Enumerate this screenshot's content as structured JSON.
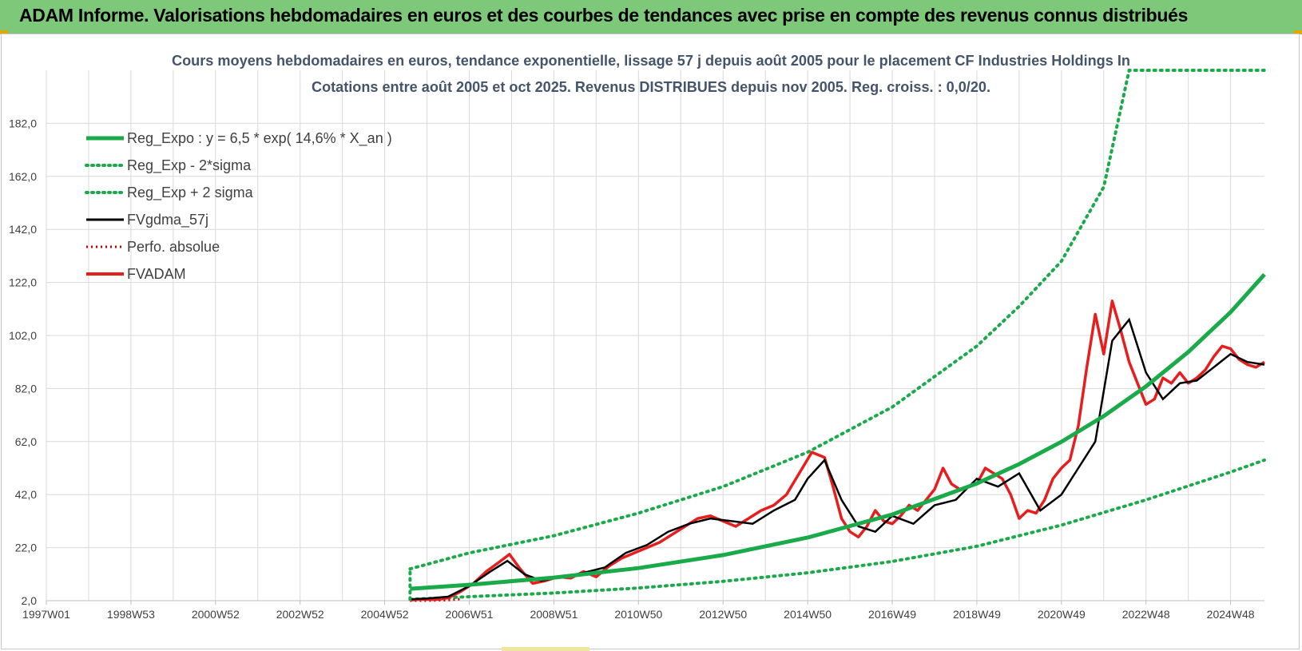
{
  "header": {
    "title": "ADAM Informe. Valorisations hebdomadaires en euros et des courbes de tendances avec prise en compte des revenus connus distribués"
  },
  "colors": {
    "header_bg": "#7ec87a",
    "reg_expo": "#1aaa4a",
    "fvgdma": "#000000",
    "fvadam": "#e61e1e",
    "grid": "#d9d9d9",
    "axis_text": "#404040",
    "title_text": "#44546a"
  },
  "chart_data": {
    "type": "line",
    "title_line1": "Cours moyens hebdomadaires en euros, tendance exponentielle, lissage 57 j depuis août 2005 pour le placement CF Industries Holdings In",
    "title_line2": "Cotations entre août 2005 et oct 2025. Revenus DISTRIBUES depuis nov 2005. Reg. croiss. : 0,0/20.",
    "xlabel": "",
    "ylabel": "",
    "xlim": [
      1997.0,
      2025.8
    ],
    "ylim": [
      2.0,
      202.0
    ],
    "y_ticks": [
      2.0,
      22.0,
      42.0,
      62.0,
      82.0,
      102.0,
      122.0,
      142.0,
      162.0,
      182.0
    ],
    "y_tick_labels": [
      "2,0",
      "22,0",
      "42,0",
      "62,0",
      "82,0",
      "102,0",
      "122,0",
      "142,0",
      "162,0",
      "182,0"
    ],
    "x_ticks": [
      1997.0,
      1999.0,
      2001.0,
      2003.0,
      2005.0,
      2007.0,
      2009.0,
      2011.0,
      2013.0,
      2015.0,
      2017.0,
      2019.0,
      2021.0,
      2023.0,
      2025.0
    ],
    "x_tick_labels": [
      "1997W01",
      "1998W53",
      "2000W52",
      "2002W52",
      "2004W52",
      "2006W51",
      "2008W51",
      "2010W50",
      "2012W50",
      "2014W50",
      "2016W49",
      "2018W49",
      "2020W49",
      "2022W48",
      "2024W48"
    ],
    "grid": true,
    "legend_position": "top-left",
    "legend": [
      {
        "key": "reg_expo",
        "label": "Reg_Expo : y = 6,5 * exp( 14,6% *  X_an )"
      },
      {
        "key": "reg_minus",
        "label": "Reg_Exp - 2*sigma"
      },
      {
        "key": "reg_plus",
        "label": "Reg_Exp + 2 sigma"
      },
      {
        "key": "fvgdma",
        "label": "FVgdma_57j"
      },
      {
        "key": "perfo",
        "label": "Perfo. absolue"
      },
      {
        "key": "fvadam",
        "label": "FVADAM"
      }
    ],
    "series": [
      {
        "key": "reg_expo",
        "name": "Reg_Expo : y = 6,5 * exp( 14,6% *  X_an )",
        "style": "solid",
        "color": "#1aaa4a",
        "x": [
          2005.6,
          2007,
          2009,
          2011,
          2013,
          2015,
          2017,
          2019,
          2020,
          2021,
          2022,
          2023,
          2024,
          2025,
          2025.8
        ],
        "y": [
          6.5,
          8.0,
          10.7,
          14.3,
          19.2,
          25.8,
          34.5,
          46.2,
          53.5,
          61.9,
          71.6,
          82.8,
          95.8,
          110.8,
          125.0
        ]
      },
      {
        "key": "reg_minus",
        "name": "Reg_Exp - 2*sigma",
        "style": "dotted",
        "color": "#1aaa4a",
        "x": [
          2005.6,
          2007,
          2009,
          2011,
          2013,
          2015,
          2017,
          2019,
          2021,
          2023,
          2025,
          2025.8
        ],
        "y": [
          2.5,
          3.5,
          4.9,
          6.8,
          9.3,
          12.5,
          16.8,
          22.5,
          30.5,
          40.0,
          50.5,
          55.0
        ]
      },
      {
        "key": "reg_plus",
        "name": "Reg_Exp + 2 sigma",
        "style": "dotted",
        "color": "#1aaa4a",
        "x": [
          2005.6,
          2007,
          2009,
          2011,
          2013,
          2015,
          2017,
          2019,
          2020,
          2021,
          2022,
          2022.6,
          2023,
          2025.8
        ],
        "y": [
          14.0,
          20.0,
          26.5,
          35.0,
          45.0,
          58.0,
          75.0,
          98.0,
          113.0,
          130.0,
          158.0,
          202.0,
          202.0,
          202.0
        ]
      },
      {
        "key": "perfo",
        "name": "Perfo. absolue",
        "style": "dotted",
        "color": "#c00000",
        "x": [
          2005.6,
          2006,
          2006.5,
          2006.8
        ],
        "y": [
          2.0,
          2.0,
          2.2,
          2.6
        ]
      },
      {
        "key": "fvgdma",
        "name": "FVgdma_57j",
        "style": "solid",
        "color": "#000000",
        "x": [
          2005.6,
          2006.0,
          2006.5,
          2007.0,
          2007.5,
          2007.9,
          2008.3,
          2008.7,
          2009.2,
          2009.7,
          2010.2,
          2010.7,
          2011.2,
          2011.7,
          2012.2,
          2012.7,
          2013.2,
          2013.7,
          2014.2,
          2014.7,
          2015.0,
          2015.4,
          2015.8,
          2016.2,
          2016.6,
          2017.0,
          2017.5,
          2018.0,
          2018.5,
          2019.0,
          2019.5,
          2020.0,
          2020.5,
          2021.0,
          2021.4,
          2021.8,
          2022.2,
          2022.6,
          2023.0,
          2023.4,
          2023.8,
          2024.2,
          2024.6,
          2025.0,
          2025.4,
          2025.8
        ],
        "y": [
          2.5,
          2.8,
          3.5,
          7.5,
          13.0,
          17.0,
          12.0,
          9.5,
          11.0,
          12.5,
          14.5,
          20.0,
          23.0,
          28.0,
          31.0,
          33.0,
          32.0,
          31.0,
          36.0,
          40.0,
          48.0,
          55.0,
          40.0,
          30.0,
          28.0,
          34.0,
          31.0,
          38.0,
          40.0,
          48.0,
          45.0,
          50.0,
          36.0,
          42.0,
          52.0,
          62.0,
          100.0,
          108.0,
          88.0,
          78.0,
          84.0,
          85.0,
          90.0,
          95.0,
          92.0,
          91.0
        ]
      },
      {
        "key": "fvadam",
        "name": "FVADAM",
        "style": "solid",
        "color": "#e61e1e",
        "x": [
          2005.6,
          2005.9,
          2006.2,
          2006.5,
          2006.8,
          2007.1,
          2007.4,
          2007.7,
          2007.95,
          2008.2,
          2008.5,
          2008.8,
          2009.1,
          2009.4,
          2009.7,
          2010.0,
          2010.3,
          2010.6,
          2010.9,
          2011.2,
          2011.5,
          2011.8,
          2012.1,
          2012.4,
          2012.7,
          2013.0,
          2013.3,
          2013.6,
          2013.9,
          2014.2,
          2014.5,
          2014.8,
          2015.1,
          2015.4,
          2015.6,
          2015.8,
          2016.0,
          2016.2,
          2016.4,
          2016.6,
          2016.8,
          2017.0,
          2017.2,
          2017.4,
          2017.6,
          2017.8,
          2018.0,
          2018.2,
          2018.4,
          2018.6,
          2018.8,
          2019.0,
          2019.2,
          2019.4,
          2019.6,
          2019.8,
          2020.0,
          2020.2,
          2020.4,
          2020.6,
          2020.8,
          2021.0,
          2021.2,
          2021.4,
          2021.6,
          2021.8,
          2022.0,
          2022.2,
          2022.4,
          2022.6,
          2022.8,
          2023.0,
          2023.2,
          2023.4,
          2023.6,
          2023.8,
          2024.0,
          2024.2,
          2024.4,
          2024.6,
          2024.8,
          2025.0,
          2025.2,
          2025.4,
          2025.6,
          2025.8
        ],
        "y": [
          2.2,
          2.5,
          2.4,
          3.0,
          5.5,
          8.5,
          13.0,
          16.5,
          19.5,
          14.0,
          8.5,
          9.5,
          11.0,
          10.5,
          13.0,
          11.0,
          15.0,
          18.0,
          20.0,
          22.0,
          24.0,
          27.0,
          30.0,
          33.0,
          34.0,
          32.0,
          30.0,
          33.0,
          36.0,
          38.0,
          42.0,
          50.0,
          58.0,
          56.0,
          45.0,
          33.0,
          28.0,
          26.0,
          30.0,
          36.0,
          32.0,
          31.0,
          34.0,
          38.0,
          36.0,
          40.0,
          44.0,
          52.0,
          46.0,
          44.0,
          45.0,
          46.0,
          52.0,
          50.0,
          48.0,
          42.0,
          33.0,
          36.0,
          35.0,
          40.0,
          48.0,
          52.0,
          55.0,
          68.0,
          90.0,
          110.0,
          95.0,
          115.0,
          104.0,
          92.0,
          84.0,
          76.0,
          78.0,
          86.0,
          84.0,
          88.0,
          84.0,
          86.0,
          89.0,
          94.0,
          98.0,
          97.0,
          93.0,
          91.0,
          90.0,
          92.0
        ]
      }
    ]
  }
}
